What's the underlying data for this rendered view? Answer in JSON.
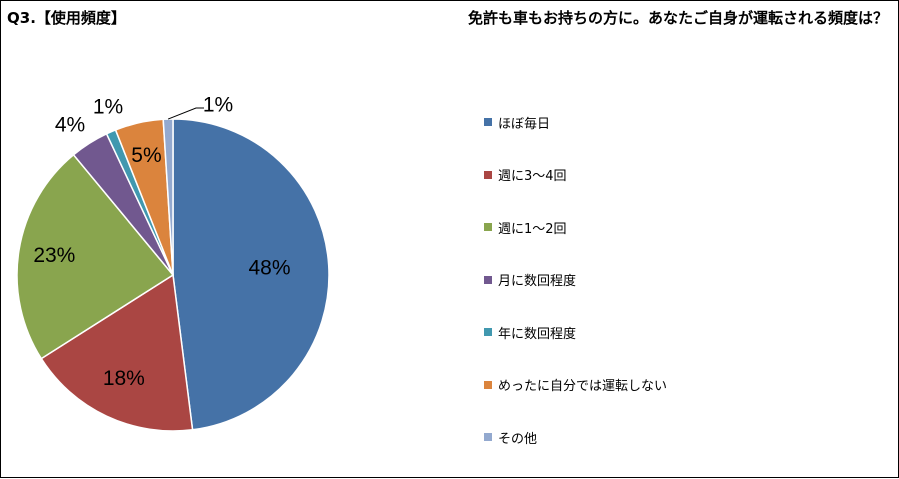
{
  "header": {
    "left_title": "Q3.【使用頻度】",
    "right_title": "免許も車もお持ちの方に。あなたご自身が運転される頻度は？"
  },
  "chart_data": {
    "type": "pie",
    "title": "免許も車もお持ちの方に。あなたご自身が運転される頻度は？",
    "categories": [
      "ほぼ毎日",
      "週に3～4回",
      "週に1～2回",
      "月に数回程度",
      "年に数回程度",
      "めったに自分では運転しない",
      "その他"
    ],
    "values": [
      48,
      18,
      23,
      4,
      1,
      5,
      1
    ],
    "data_labels": [
      "48%",
      "18%",
      "23%",
      "4%",
      "1%",
      "5%",
      "1%"
    ],
    "colors": [
      "#4572A7",
      "#AA4643",
      "#89A54E",
      "#71588F",
      "#4198AF",
      "#DB843D",
      "#93A9CF"
    ],
    "legend_position": "right"
  }
}
